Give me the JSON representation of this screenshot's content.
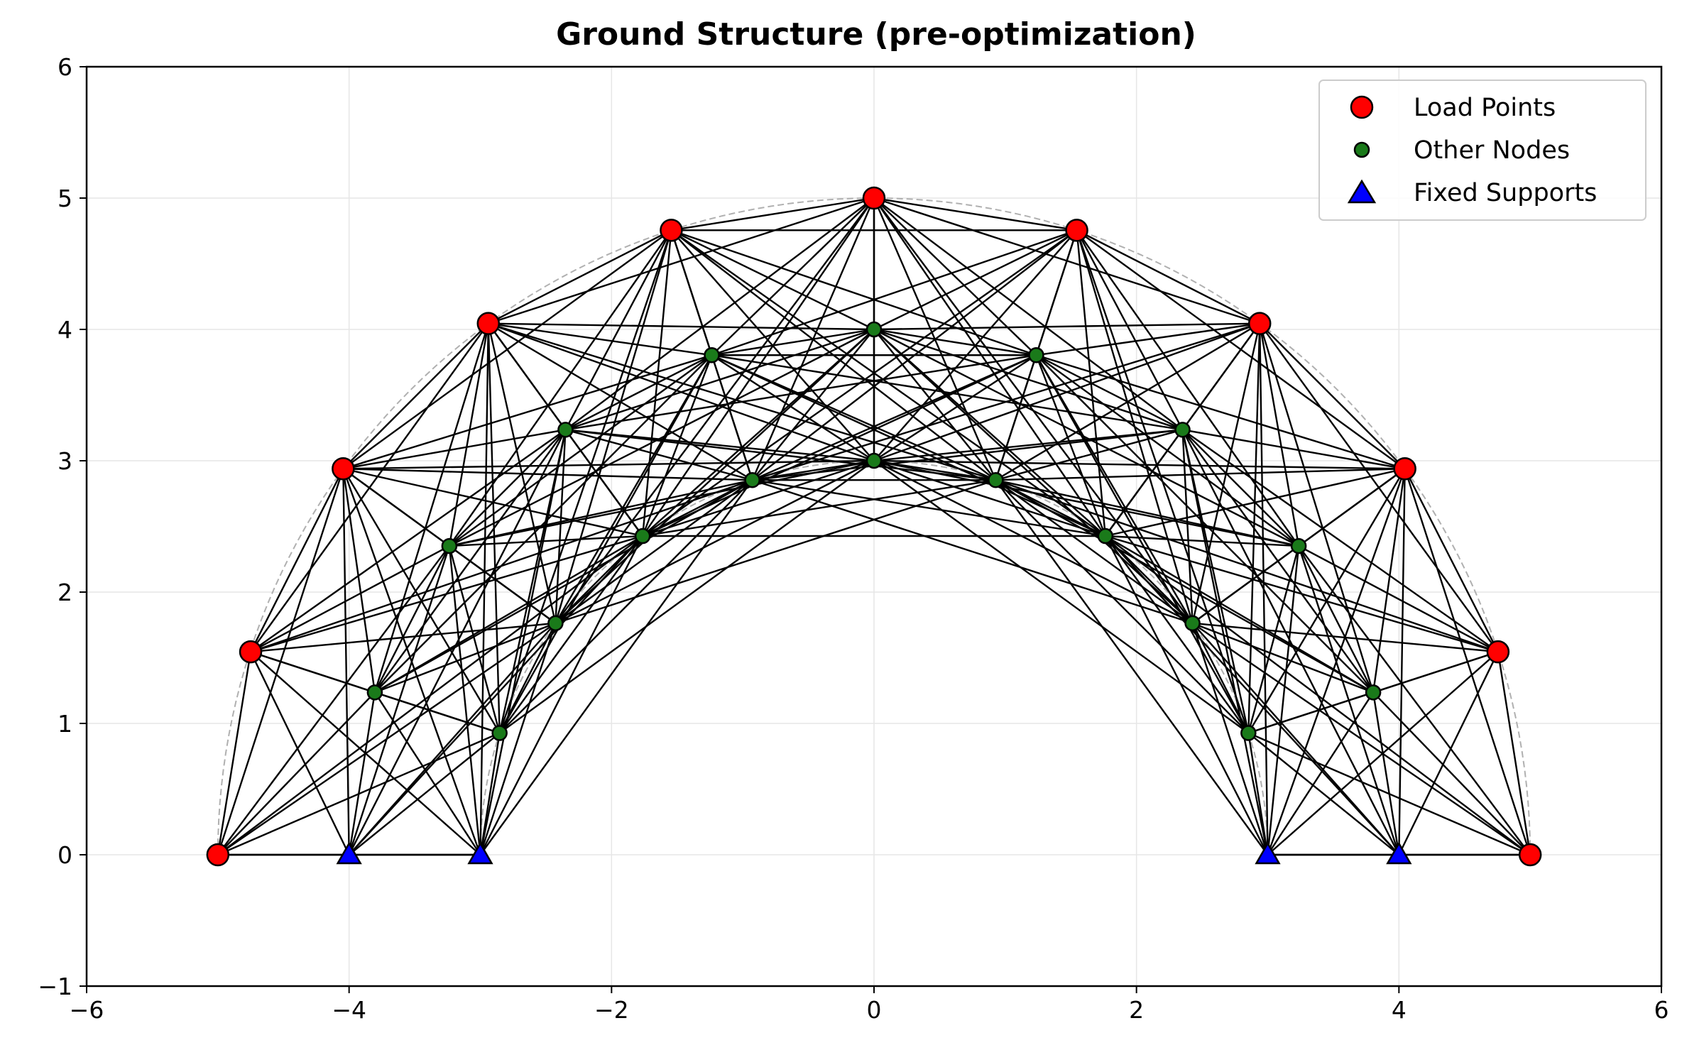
{
  "chart_data": {
    "type": "scatter",
    "title": "Ground Structure (pre-optimization)",
    "xlabel": "",
    "ylabel": "",
    "xlim": [
      -6,
      6
    ],
    "ylim": [
      -1,
      6
    ],
    "x_ticks": [
      -6,
      -4,
      -2,
      0,
      2,
      4,
      6
    ],
    "y_ticks": [
      -1,
      0,
      1,
      2,
      3,
      4,
      5,
      6
    ],
    "x_tick_labels": [
      "−6",
      "−4",
      "−2",
      "0",
      "2",
      "4",
      "6"
    ],
    "y_tick_labels": [
      "−1",
      "0",
      "1",
      "2",
      "3",
      "4",
      "5",
      "6"
    ],
    "grid": true,
    "legend_position": "top-right",
    "outer_arc_radius": 5,
    "inner_arc_radius": 3,
    "series": [
      {
        "name": "Load Points",
        "marker": "circle",
        "color": "#ff0000",
        "points": [
          [
            -5.0,
            0.0
          ],
          [
            -4.75,
            1.545
          ],
          [
            -4.045,
            2.939
          ],
          [
            -2.939,
            4.045
          ],
          [
            -1.545,
            4.755
          ],
          [
            0.0,
            5.0
          ],
          [
            1.545,
            4.755
          ],
          [
            2.939,
            4.045
          ],
          [
            4.045,
            2.939
          ],
          [
            4.755,
            1.545
          ],
          [
            5.0,
            0.0
          ]
        ]
      },
      {
        "name": "Other Nodes",
        "marker": "circle",
        "color": "#1a7a1a",
        "points": [
          [
            -2.853,
            0.927
          ],
          [
            -2.427,
            1.763
          ],
          [
            -1.763,
            2.427
          ],
          [
            -0.927,
            2.853
          ],
          [
            0.0,
            3.0
          ],
          [
            0.927,
            2.853
          ],
          [
            1.763,
            2.427
          ],
          [
            2.427,
            1.763
          ],
          [
            2.853,
            0.927
          ],
          [
            -3.804,
            1.236
          ],
          [
            -3.236,
            2.351
          ],
          [
            -2.351,
            3.236
          ],
          [
            -1.236,
            3.804
          ],
          [
            0.0,
            4.0
          ],
          [
            1.236,
            3.804
          ],
          [
            2.351,
            3.236
          ],
          [
            3.236,
            2.351
          ],
          [
            3.804,
            1.236
          ]
        ]
      },
      {
        "name": "Fixed Supports",
        "marker": "triangle",
        "color": "#0000ff",
        "points": [
          [
            -4.0,
            0.0
          ],
          [
            -3.0,
            0.0
          ],
          [
            3.0,
            0.0
          ],
          [
            4.0,
            0.0
          ]
        ]
      }
    ],
    "members_max_length": 4.1,
    "colors": {
      "member": "#000000",
      "grid": "#e6e6e6",
      "guide_arc": "#b0b0b0",
      "marker_edge": "#000000"
    }
  }
}
